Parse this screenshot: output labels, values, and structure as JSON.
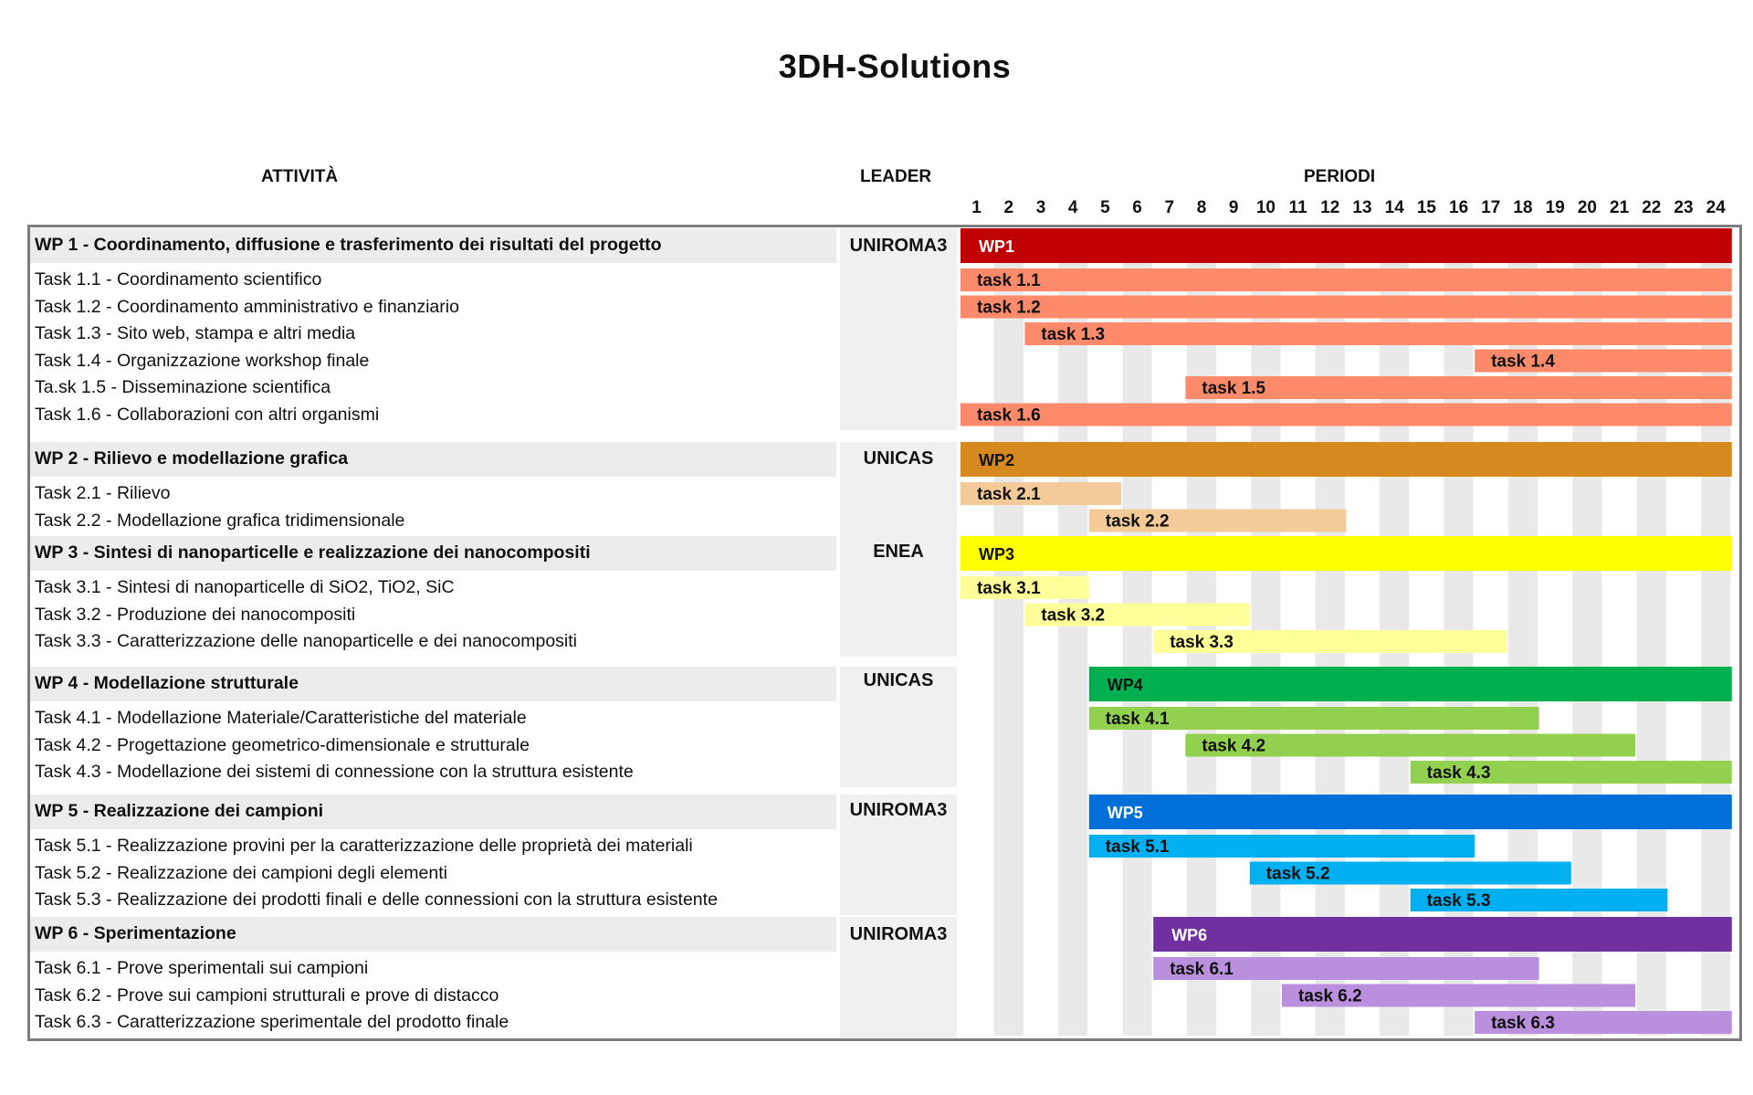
{
  "title": "3DH-Solutions",
  "headers": {
    "activity": "ATTIVITÀ",
    "leader": "LEADER",
    "periods": "PERIODI"
  },
  "chart_data": {
    "type": "gantt",
    "title": "3DH-Solutions",
    "x_axis_label": "PERIODI",
    "periods": [
      "1",
      "2",
      "3",
      "4",
      "5",
      "6",
      "7",
      "8",
      "9",
      "10",
      "11",
      "12",
      "13",
      "14",
      "15",
      "16",
      "17",
      "18",
      "19",
      "20",
      "21",
      "22",
      "23",
      "24"
    ],
    "xlim": [
      1,
      24
    ],
    "work_packages": [
      {
        "name": "WP 1 - Coordinamento, diffusione e trasferimento dei risultati del progetto",
        "leader": "UNIROMA3",
        "bar_label": "WP1",
        "start": 1,
        "end": 24,
        "color": "#c00000",
        "label_color": "#ffffff",
        "tasks": [
          {
            "name": "Task 1.1 - Coordinamento scientifico",
            "bar_label": "task 1.1",
            "start": 1,
            "end": 24
          },
          {
            "name": "Task 1.2 - Coordinamento amministrativo e finanziario",
            "bar_label": "task 1.2",
            "start": 1,
            "end": 24
          },
          {
            "name": "Task 1.3 - Sito web, stampa e altri media",
            "bar_label": "task 1.3",
            "start": 3,
            "end": 24
          },
          {
            "name": "Task 1.4 - Organizzazione workshop finale",
            "bar_label": "task 1.4",
            "start": 17,
            "end": 24
          },
          {
            "name": "Ta.sk 1.5 - Disseminazione scientifica",
            "bar_label": "task 1.5",
            "start": 8,
            "end": 24
          },
          {
            "name": "Task 1.6 - Collaborazioni con altri organismi",
            "bar_label": "task 1.6",
            "start": 1,
            "end": 24
          }
        ],
        "task_color": "#fd8b6b"
      },
      {
        "name": "WP 2 - Rilievo e modellazione grafica",
        "leader": "UNICAS",
        "bar_label": "WP2",
        "start": 1,
        "end": 24,
        "color": "#d6891f",
        "label_color": "#111111",
        "tasks": [
          {
            "name": "Task 2.1 - Rilievo",
            "bar_label": "task 2.1",
            "start": 1,
            "end": 5
          },
          {
            "name": "Task 2.2 - Modellazione grafica tridimensionale",
            "bar_label": "task 2.2",
            "start": 5,
            "end": 12
          }
        ],
        "task_color": "#f4ca98"
      },
      {
        "name": "WP 3 - Sintesi di nanoparticelle e realizzazione dei nanocompositi",
        "leader": "ENEA",
        "bar_label": "WP3",
        "start": 1,
        "end": 24,
        "color": "#ffff00",
        "label_color": "#111111",
        "tasks": [
          {
            "name": "Task 3.1 - Sintesi di nanoparticelle di SiO2, TiO2, SiC",
            "bar_label": "task 3.1",
            "start": 1,
            "end": 4
          },
          {
            "name": "Task 3.2 - Produzione dei nanocompositi",
            "bar_label": "task 3.2",
            "start": 3,
            "end": 9
          },
          {
            "name": "Task 3.3 - Caratterizzazione delle nanoparticelle e dei nanocompositi",
            "bar_label": "task 3.3",
            "start": 7,
            "end": 17
          }
        ],
        "task_color": "#ffff99"
      },
      {
        "name": "WP 4 - Modellazione strutturale",
        "leader": "UNICAS",
        "bar_label": "WP4",
        "start": 5,
        "end": 24,
        "color": "#00b050",
        "label_color": "#111111",
        "tasks": [
          {
            "name": "Task 4.1 - Modellazione Materiale/Caratteristiche del materiale",
            "bar_label": "task 4.1",
            "start": 5,
            "end": 18
          },
          {
            "name": "Task 4.2 - Progettazione geometrico-dimensionale e strutturale",
            "bar_label": "task 4.2",
            "start": 8,
            "end": 21
          },
          {
            "name": "Task 4.3 - Modellazione dei sistemi di connessione con la struttura esistente",
            "bar_label": "task 4.3",
            "start": 15,
            "end": 24
          }
        ],
        "task_color": "#92d050"
      },
      {
        "name": "WP 5 - Realizzazione dei campioni",
        "leader": "UNIROMA3",
        "bar_label": "WP5",
        "start": 5,
        "end": 24,
        "color": "#0070d8",
        "label_color": "#ffffff",
        "tasks": [
          {
            "name": "Task 5.1 - Realizzazione provini per la caratterizzazione delle proprietà dei materiali",
            "bar_label": "task 5.1",
            "start": 5,
            "end": 16
          },
          {
            "name": "Task 5.2 - Realizzazione dei campioni degli elementi",
            "bar_label": "task 5.2",
            "start": 10,
            "end": 19
          },
          {
            "name": "Task 5.3 - Realizzazione dei prodotti finali e delle connessioni con la struttura esistente",
            "bar_label": "task 5.3",
            "start": 15,
            "end": 22
          }
        ],
        "task_color": "#00b0f0"
      },
      {
        "name": "WP 6 - Sperimentazione",
        "leader": "UNIROMA3",
        "bar_label": "WP6",
        "start": 7,
        "end": 24,
        "color": "#7030a0",
        "label_color": "#ffffff",
        "tasks": [
          {
            "name": "Task 6.1 - Prove sperimentali sui campioni",
            "bar_label": "task 6.1",
            "start": 7,
            "end": 18
          },
          {
            "name": "Task 6.2 - Prove sui campioni strutturali e prove di distacco",
            "bar_label": "task 6.2",
            "start": 11,
            "end": 21
          },
          {
            "name": "Task 6.3 - Caratterizzazione sperimentale del prodotto finale",
            "bar_label": "task 6.3",
            "start": 17,
            "end": 24
          }
        ],
        "task_color": "#b98fde"
      }
    ]
  }
}
